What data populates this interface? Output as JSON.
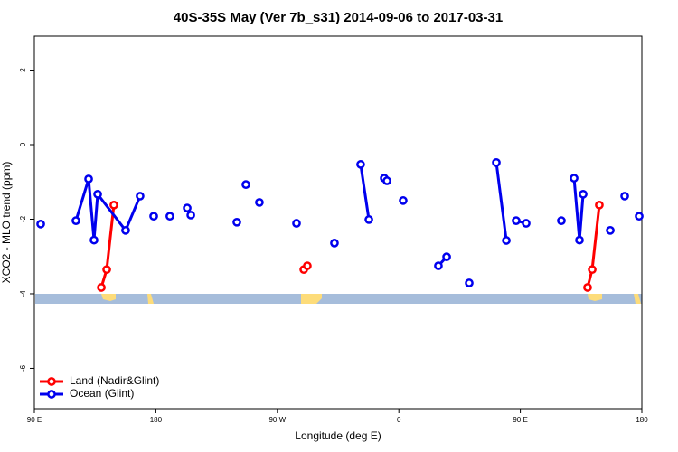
{
  "chart_data": {
    "type": "line",
    "title": "40S-35S May (Ver 7b_s31)   2014-09-06 to 2017-03-31",
    "x_label": "Longitude (deg E)",
    "y_label": "XCO2 - MLO trend (ppm)",
    "xlim": [
      90,
      540
    ],
    "ylim": [
      -7.08,
      2.91
    ],
    "xticks": [
      {
        "value": 90,
        "label": "90 E"
      },
      180,
      {
        "value": 270,
        "label": "90 W"
      },
      {
        "value": 360,
        "label": "0"
      },
      {
        "value": 450,
        "label": "90 E"
      },
      {
        "value": 540,
        "label": "180"
      }
    ],
    "yticks": [
      2,
      0,
      -2,
      -4,
      -6
    ],
    "legend": "bottomleft",
    "series": [
      {
        "name": "Land (Nadir&Glint)",
        "color": "#ff0000",
        "x": [
          139.6,
          143.6,
          148.9,
          null,
          289.6,
          292.2,
          null,
          499.8,
          503.2,
          508.5
        ],
        "values": [
          -3.83,
          -3.35,
          -1.62,
          null,
          -3.35,
          -3.25,
          null,
          -3.83,
          -3.35,
          -1.62
        ]
      },
      {
        "name": "Ocean (Glint)",
        "color": "#0000ee",
        "x": [
          94.7,
          null,
          120.8,
          130.2,
          134.2,
          136.9,
          157.6,
          168.3,
          null,
          178.4,
          null,
          190.4,
          null,
          203.2,
          205.9,
          null,
          240,
          null,
          246.7,
          null,
          256.7,
          null,
          284.2,
          null,
          312.3,
          null,
          331.7,
          337.8,
          null,
          349.2,
          351.2,
          null,
          363.2,
          null,
          389.3,
          395.4,
          null,
          412.1,
          null,
          432.2,
          439.6,
          null,
          446.9,
          454.3,
          null,
          480.4,
          null,
          489.8,
          493.8,
          496.5,
          null,
          516.6,
          null,
          527.3,
          null,
          538
        ],
        "values": [
          -2.13,
          null,
          -2.04,
          -0.92,
          -2.56,
          -1.33,
          -2.3,
          -1.38,
          null,
          -1.92,
          null,
          -1.92,
          null,
          -1.7,
          -1.89,
          null,
          -2.08,
          null,
          -1.07,
          null,
          -1.55,
          null,
          -2.11,
          null,
          -2.64,
          null,
          -0.53,
          -2.01,
          null,
          -0.9,
          -0.97,
          null,
          -1.5,
          null,
          -3.25,
          -3.01,
          null,
          -3.71,
          null,
          -0.48,
          -2.57,
          null,
          -2.04,
          -2.11,
          null,
          -2.04,
          null,
          -0.9,
          -2.56,
          -1.33,
          null,
          -2.3,
          null,
          -1.38,
          null,
          -1.92
        ]
      }
    ]
  }
}
